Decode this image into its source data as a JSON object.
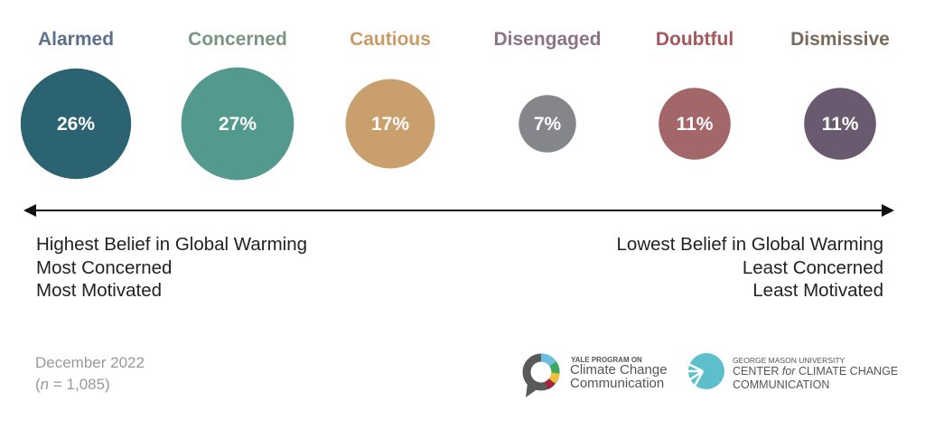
{
  "chart_data": {
    "type": "bubble",
    "categories": [
      "Alarmed",
      "Concerned",
      "Cautious",
      "Disengaged",
      "Doubtful",
      "Dismissive"
    ],
    "values": [
      26,
      27,
      17,
      7,
      11,
      11
    ],
    "value_labels": [
      "26%",
      "27%",
      "17%",
      "7%",
      "11%",
      "11%"
    ],
    "title_colors": [
      "#5c6f8c",
      "#7a9682",
      "#c99b66",
      "#8a7485",
      "#a5585b",
      "#7a6a5b"
    ],
    "bubble_colors": [
      "#2b6373",
      "#53998d",
      "#c9a06d",
      "#85868c",
      "#a3676a",
      "#6a5a70"
    ],
    "axis": {
      "left": [
        "Highest Belief in Global Warming",
        "Most Concerned",
        "Most Motivated"
      ],
      "right": [
        "Lowest Belief in Global Warming",
        "Least Concerned",
        "Least Motivated"
      ]
    }
  },
  "footer": {
    "date": "December 2022",
    "n_prefix": "(",
    "n_var": "n",
    "n_value": " = 1,085)"
  },
  "logos": {
    "yale": {
      "small": "YALE PROGRAM ON",
      "line1": "Climate Change",
      "line2": "Communication"
    },
    "gmu": {
      "small": "GEORGE MASON UNIVERSITY",
      "line1a": "CENTER ",
      "line1b": "for",
      "line1c": " CLIMATE CHANGE",
      "line2": "COMMUNICATION"
    }
  }
}
